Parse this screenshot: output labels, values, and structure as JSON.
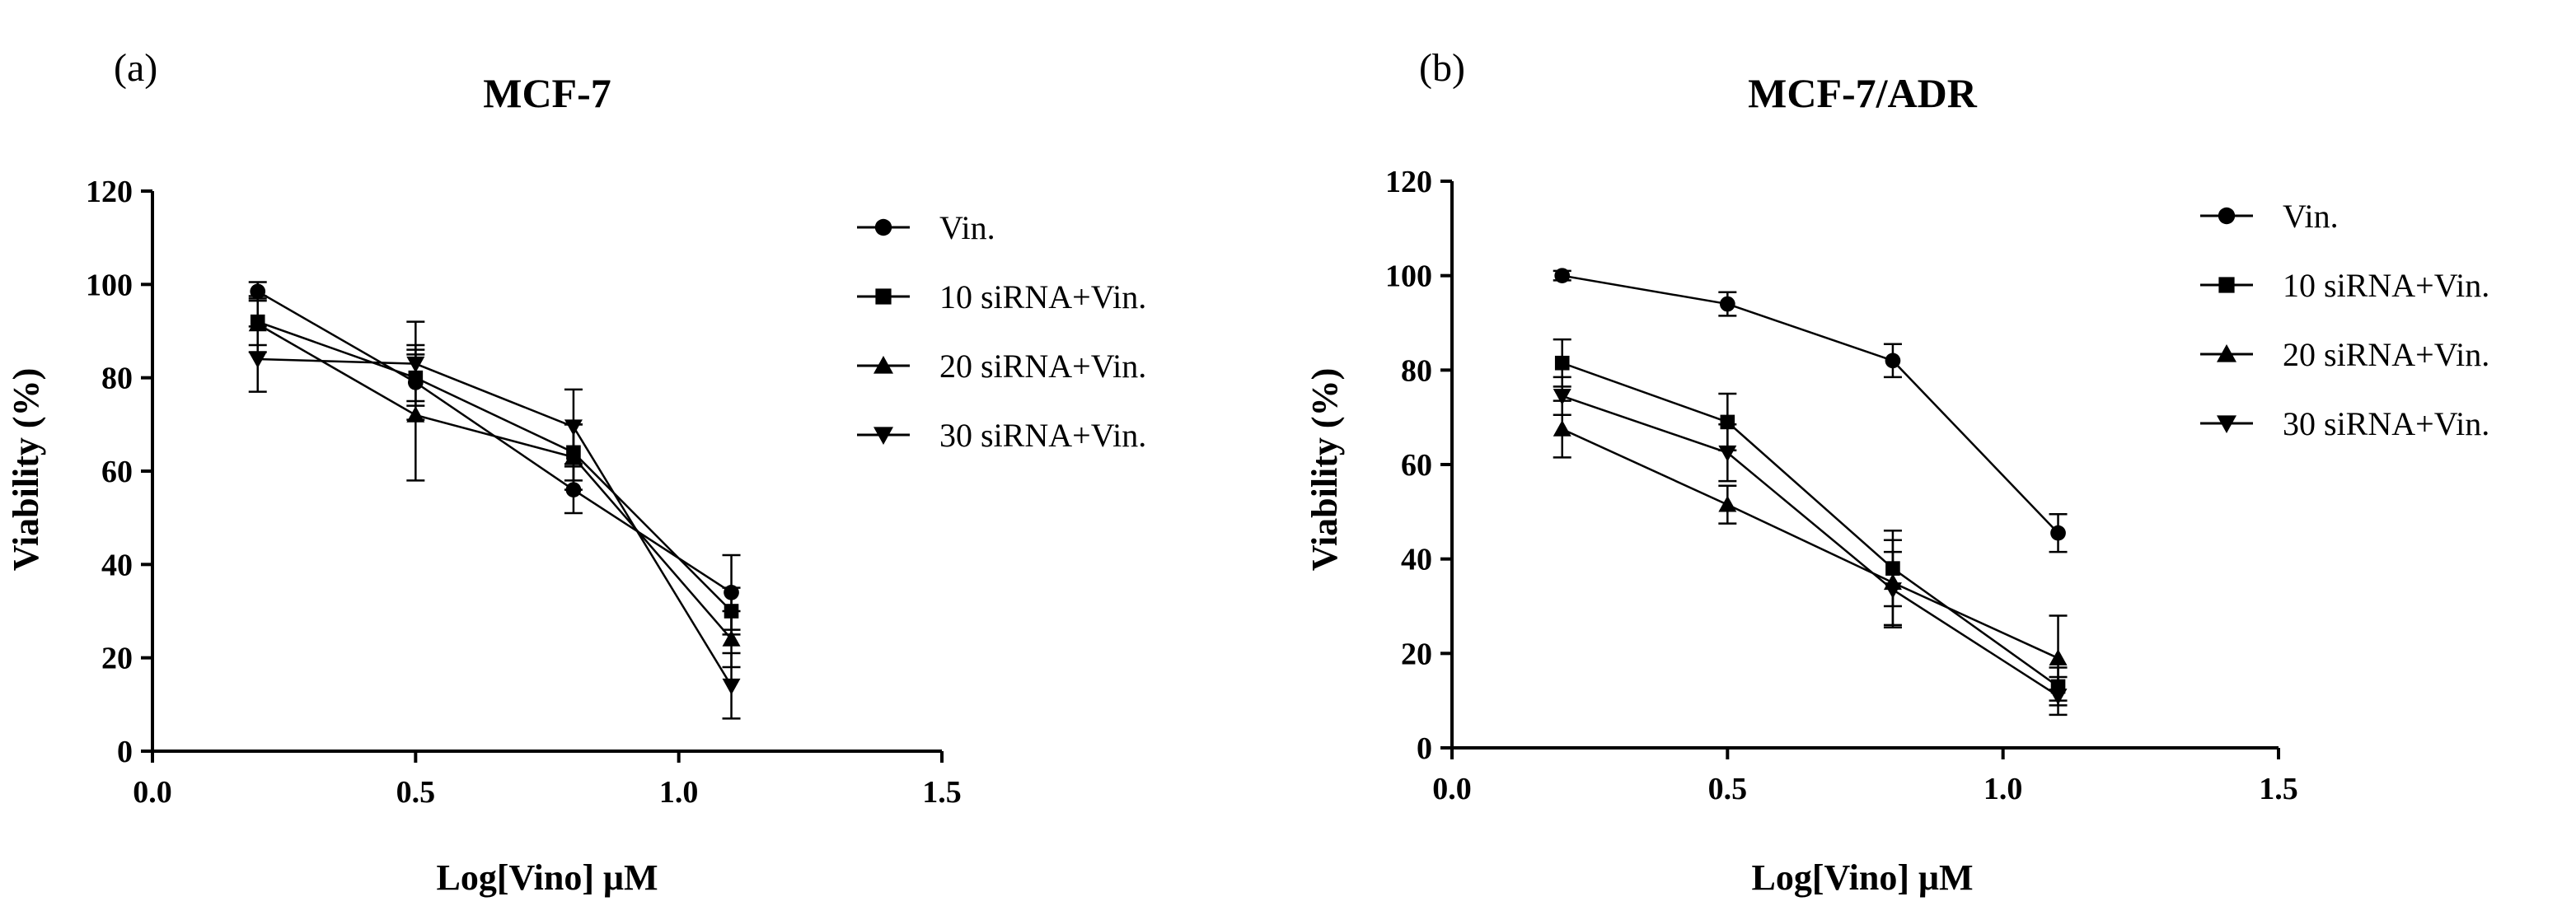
{
  "chart_data": [
    {
      "type": "line",
      "panel_label": "(a)",
      "title": "MCF-7",
      "xlabel": "Log[Vino] μM",
      "ylabel": "Viability (%)",
      "xlim": [
        0.0,
        1.5
      ],
      "ylim": [
        0,
        120
      ],
      "xticks": [
        0.0,
        0.5,
        1.0,
        1.5
      ],
      "xtick_labels": [
        "0.0",
        "0.5",
        "1.0",
        "1.5"
      ],
      "yticks": [
        0,
        20,
        40,
        60,
        80,
        100,
        120
      ],
      "ytick_labels": [
        "0",
        "20",
        "40",
        "60",
        "80",
        "100",
        "120"
      ],
      "grid": false,
      "legend_position": "right",
      "x": [
        0.2,
        0.5,
        0.8,
        1.1
      ],
      "series": [
        {
          "name": "Vin.",
          "marker": "circle",
          "values": [
            98.5,
            79,
            56,
            34
          ],
          "errors": [
            2,
            8,
            5,
            8
          ]
        },
        {
          "name": "10 siRNA+Vin.",
          "marker": "square",
          "values": [
            92,
            80,
            64,
            30
          ],
          "errors": [
            5,
            5,
            6,
            5
          ]
        },
        {
          "name": "20 siRNA+Vin.",
          "marker": "triangle-up",
          "values": [
            91.5,
            72,
            63,
            24
          ],
          "errors": [
            6,
            14,
            7,
            6
          ]
        },
        {
          "name": "30 siRNA+Vin.",
          "marker": "triangle-down",
          "values": [
            84,
            83,
            69.5,
            14
          ],
          "errors": [
            7,
            9,
            8,
            7
          ]
        }
      ]
    },
    {
      "type": "line",
      "panel_label": "(b)",
      "title": "MCF-7/ADR",
      "xlabel": "Log[Vino] μM",
      "ylabel": "Viability (%)",
      "xlim": [
        0.0,
        1.5
      ],
      "ylim": [
        0,
        120
      ],
      "xticks": [
        0.0,
        0.5,
        1.0,
        1.5
      ],
      "xtick_labels": [
        "0.0",
        "0.5",
        "1.0",
        "1.5"
      ],
      "yticks": [
        0,
        20,
        40,
        60,
        80,
        100,
        120
      ],
      "ytick_labels": [
        "0",
        "20",
        "40",
        "60",
        "80",
        "100",
        "120"
      ],
      "grid": false,
      "legend_position": "right",
      "x": [
        0.2,
        0.5,
        0.8,
        1.1
      ],
      "series": [
        {
          "name": "Vin.",
          "marker": "circle",
          "values": [
            100,
            94,
            82,
            45.5
          ],
          "errors": [
            1,
            2.5,
            3.5,
            4
          ]
        },
        {
          "name": "10 siRNA+Vin.",
          "marker": "square",
          "values": [
            81.5,
            69,
            38,
            13
          ],
          "errors": [
            5,
            6,
            8,
            4
          ]
        },
        {
          "name": "20 siRNA+Vin.",
          "marker": "triangle-up",
          "values": [
            67.5,
            51.5,
            35,
            19
          ],
          "errors": [
            6,
            4,
            9,
            9
          ]
        },
        {
          "name": "30 siRNA+Vin.",
          "marker": "triangle-down",
          "values": [
            74.5,
            62.5,
            33.5,
            11
          ],
          "errors": [
            4,
            6,
            8,
            4
          ]
        }
      ]
    }
  ]
}
